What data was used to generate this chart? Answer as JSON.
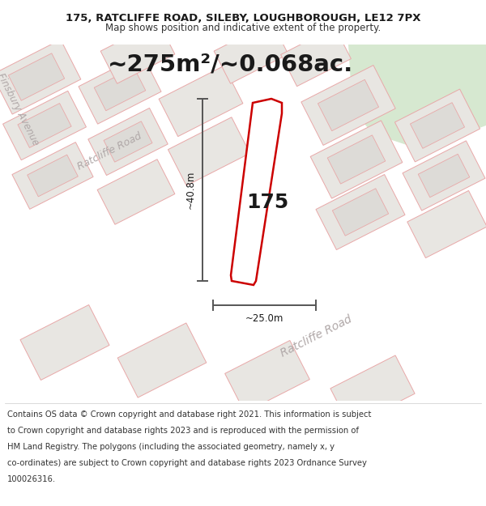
{
  "title_line1": "175, RATCLIFFE ROAD, SILEBY, LOUGHBOROUGH, LE12 7PX",
  "title_line2": "Map shows position and indicative extent of the property.",
  "area_text": "~275m²/~0.068ac.",
  "property_number": "175",
  "dim_width": "~25.0m",
  "dim_height": "~40.8m",
  "bg_color": "#ffffff",
  "map_bg": "#f2f0ed",
  "road_color": "#ffffff",
  "plot_outline_color": "#cc0000",
  "plot_fill_color": "#ffffff",
  "building_fill": "#e8e6e2",
  "building_edge": "#e8a8a8",
  "road_label_color": "#b0a8a8",
  "green_color": "#d6e8d0",
  "dim_line_color": "#555555",
  "title_fontsize": 9.5,
  "subtitle_fontsize": 8.5,
  "area_fontsize": 21,
  "number_fontsize": 18,
  "footer_fontsize": 7.2,
  "footer_lines": [
    "Contains OS data © Crown copyright and database right 2021. This information is subject",
    "to Crown copyright and database rights 2023 and is reproduced with the permission of",
    "HM Land Registry. The polygons (including the associated geometry, namely x, y",
    "co-ordinates) are subject to Crown copyright and database rights 2023 Ordnance Survey",
    "100026316."
  ]
}
